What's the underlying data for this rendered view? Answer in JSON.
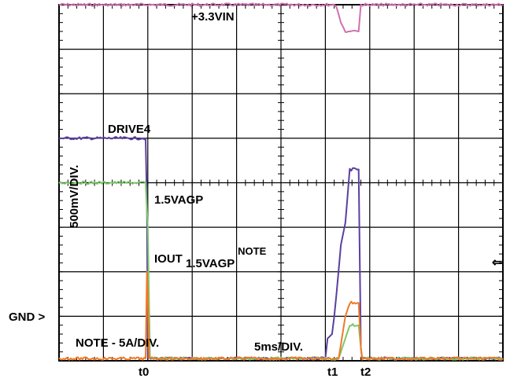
{
  "chart_data": {
    "type": "line",
    "title": "",
    "xlabel": "5ms/DIV.",
    "ylabel": "500mV/DIV.",
    "x_unit_per_div": "5ms",
    "x_range_divisions": [
      0,
      10
    ],
    "y_range_divisions": [
      0,
      8
    ],
    "grid": true,
    "ground_marker": "GND >",
    "note_text": "NOTE - 5A/DIV.",
    "time_markers": [
      {
        "label": "t0",
        "x": 2.0
      },
      {
        "label": "t1",
        "x": 6.2
      },
      {
        "label": "t2",
        "x": 6.9
      }
    ],
    "series": [
      {
        "name": "+3.3VIN",
        "color": "#d070b0",
        "x": [
          0.0,
          6.2,
          6.25,
          6.35,
          6.45,
          6.55,
          6.65,
          6.75,
          6.8,
          10.0
        ],
        "y": [
          8.0,
          8.0,
          7.95,
          7.6,
          7.4,
          7.4,
          7.42,
          7.4,
          8.0,
          8.0
        ]
      },
      {
        "name": "DRIVE4",
        "color": "#5b3fa0",
        "x": [
          0.0,
          1.95,
          1.98,
          2.0,
          6.0,
          6.05,
          6.15,
          6.2,
          6.25,
          6.35,
          6.45,
          6.55,
          6.75,
          6.8,
          6.83,
          10.0
        ],
        "y": [
          5.0,
          5.0,
          3.5,
          0.05,
          0.05,
          0.5,
          0.6,
          1.0,
          1.5,
          2.6,
          3.1,
          4.3,
          4.3,
          0.3,
          0.05,
          0.05
        ]
      },
      {
        "name": "1.5VAGP",
        "color": "#7ec86a",
        "x": [
          0.0,
          0.6,
          1.95,
          2.0,
          2.05,
          6.3,
          6.55,
          6.75,
          6.8,
          6.83,
          10.0
        ],
        "y": [
          4.0,
          4.0,
          4.0,
          3.0,
          0.05,
          0.05,
          0.8,
          0.8,
          0.3,
          0.05,
          0.05
        ]
      },
      {
        "name": "IOUT1.5VAGP NOTE",
        "color": "#f07a28",
        "x": [
          0.0,
          1.95,
          1.98,
          2.0,
          2.03,
          6.3,
          6.45,
          6.55,
          6.75,
          6.8,
          6.83,
          10.0
        ],
        "y": [
          0.05,
          0.05,
          2.0,
          1.5,
          0.05,
          0.05,
          1.0,
          1.3,
          1.3,
          0.3,
          0.05,
          0.05
        ]
      }
    ]
  },
  "labels": {
    "vin": "+3.3VIN",
    "drive": "DRIVE4",
    "vagp": "1.5VAGP",
    "iout_main": "IOUT",
    "iout_sub": "1.5VAGP",
    "iout_sup": "NOTE",
    "ylabel": "500mV/DIV.",
    "gnd": "GND >",
    "note": "NOTE - 5A/DIV.",
    "timescale": "5ms/DIV.",
    "t0": "t0",
    "t1": "t1",
    "t2": "t2",
    "arrow": "⇐"
  }
}
